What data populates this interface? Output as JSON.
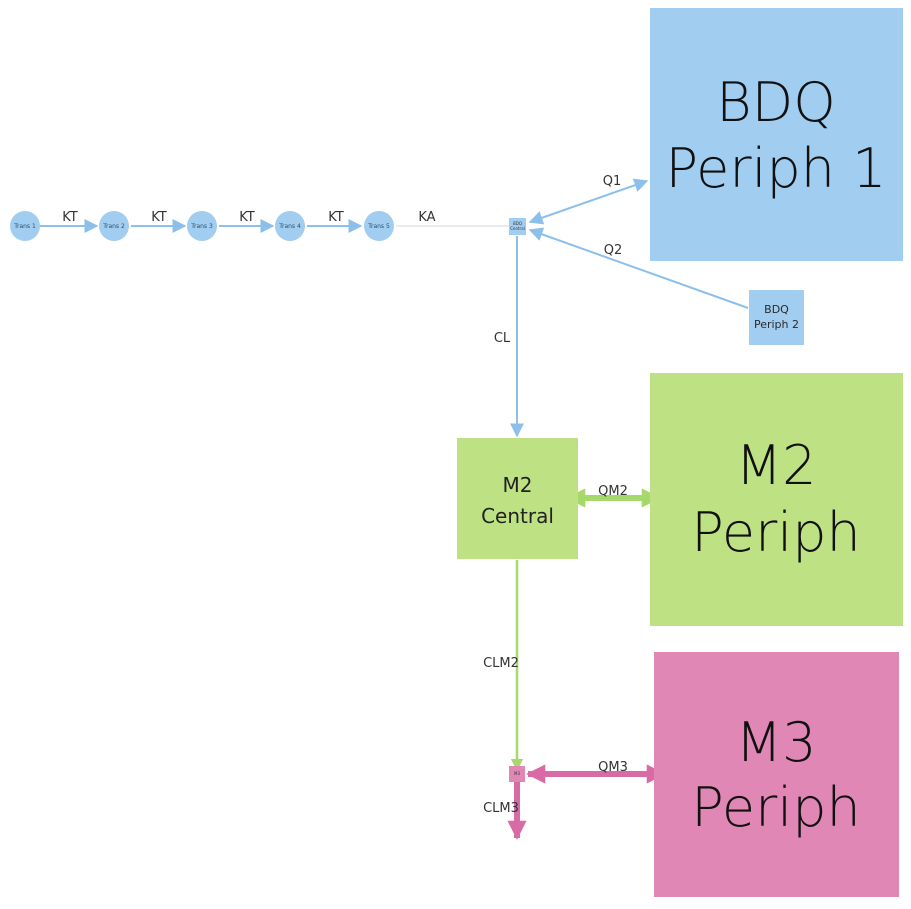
{
  "colors": {
    "blue": "#a1cdf1",
    "blue_edge": "#8cc0ea",
    "green": "#bde183",
    "green_edge": "#a7d86a",
    "pink": "#e087b6",
    "pink_edge": "#d86aa6",
    "faint_edge": "#d6d6d6"
  },
  "nodes": {
    "trans1": "Trans 1",
    "trans2": "Trans 2",
    "trans3": "Trans 3",
    "trans4": "Trans 4",
    "trans5": "Trans 5",
    "bdq_central_line1": "BDQ",
    "bdq_central_line2": "Central",
    "bdq_periph1_line1": "BDQ",
    "bdq_periph1_line2": "Periph 1",
    "bdq_periph2_line1": "BDQ",
    "bdq_periph2_line2": "Periph 2",
    "m2_central_line1": "M2",
    "m2_central_line2": "Central",
    "m2_periph_line1": "M2",
    "m2_periph_line2": "Periph",
    "m3_central": "M3",
    "m3_periph_line1": "M3",
    "m3_periph_line2": "Periph"
  },
  "edges": {
    "kt1": "KT",
    "kt2": "KT",
    "kt3": "KT",
    "kt4": "KT",
    "ka": "KA",
    "q1": "Q1",
    "q2": "Q2",
    "cl": "CL",
    "qm2": "QM2",
    "clm2": "CLM2",
    "qm3": "QM3",
    "clm3": "CLM3"
  }
}
